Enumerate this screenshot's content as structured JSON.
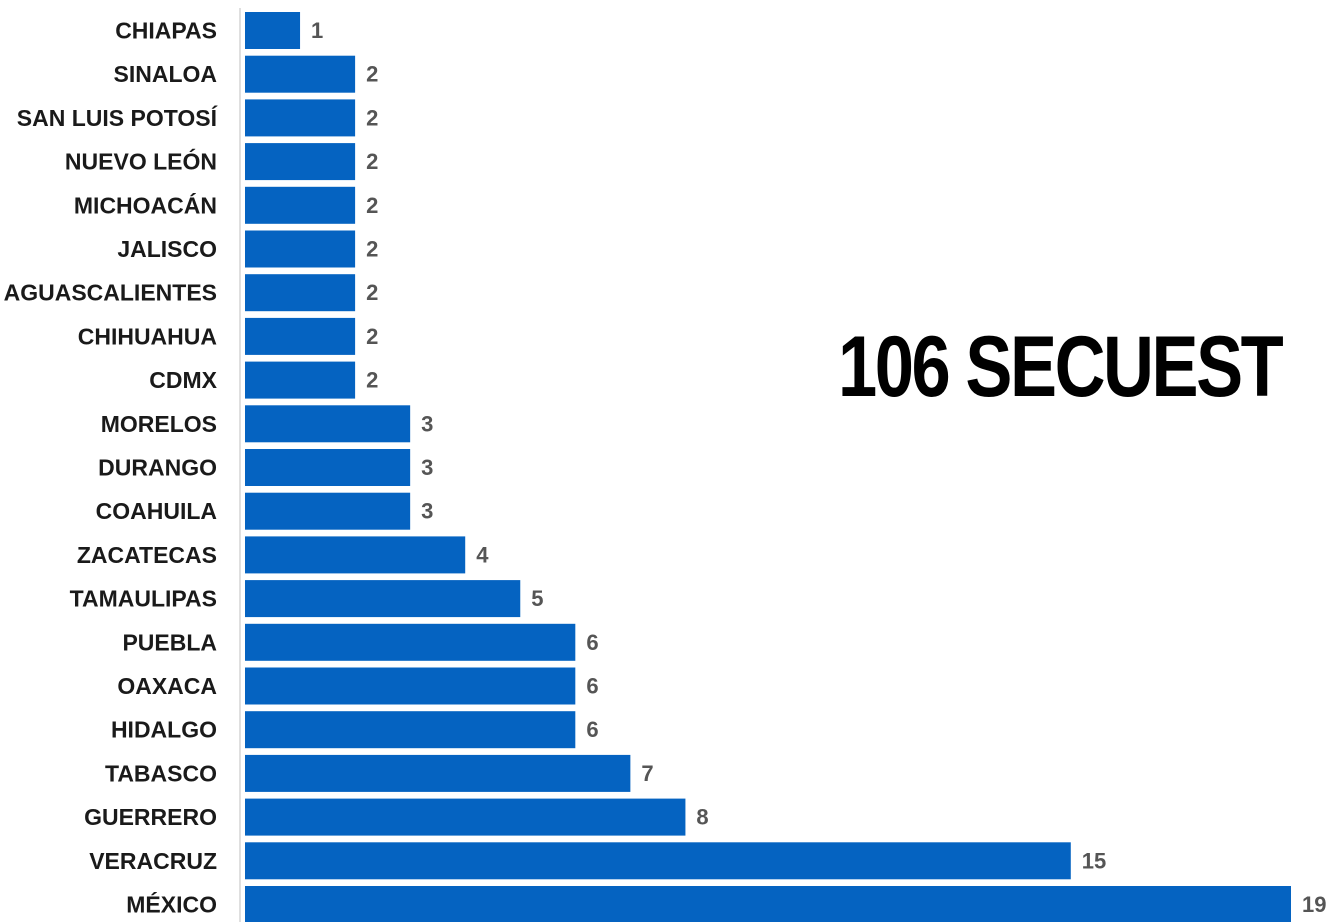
{
  "headline": "106 SECUEST",
  "colors": {
    "bar": "#0563C1",
    "axis": "#bfbfbf",
    "value_label": "#555555",
    "category_label": "#1a1a1a"
  },
  "chart_data": {
    "type": "bar",
    "orientation": "horizontal",
    "categories": [
      "CHIAPAS",
      "SINALOA",
      "SAN LUIS POTOSÍ",
      "NUEVO LEÓN",
      "MICHOACÁN",
      "JALISCO",
      "AGUASCALIENTES",
      "CHIHUAHUA",
      "CDMX",
      "MORELOS",
      "DURANGO",
      "COAHUILA",
      "ZACATECAS",
      "TAMAULIPAS",
      "PUEBLA",
      "OAXACA",
      "HIDALGO",
      "TABASCO",
      "GUERRERO",
      "VERACRUZ",
      "MÉXICO"
    ],
    "values": [
      1,
      2,
      2,
      2,
      2,
      2,
      2,
      2,
      2,
      3,
      3,
      3,
      4,
      5,
      6,
      6,
      6,
      7,
      8,
      15,
      19
    ],
    "value_labels": [
      "1",
      "2",
      "2",
      "2",
      "2",
      "2",
      "2",
      "2",
      "2",
      "3",
      "3",
      "3",
      "4",
      "5",
      "6",
      "6",
      "6",
      "7",
      "8",
      "15",
      "19"
    ],
    "xlim": [
      0,
      19
    ],
    "grid": false,
    "legend": "none",
    "data_labels": true
  }
}
